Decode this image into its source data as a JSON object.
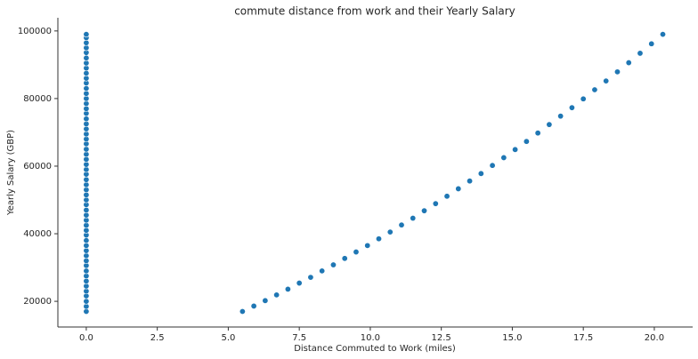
{
  "chart_data": {
    "type": "scatter",
    "title": "commute distance from work and their Yearly Salary",
    "x_label": "Distance Commuted to Work (miles)",
    "y_label": "Yearly Salary (GBP)",
    "color": "#1f77b4",
    "x": [
      0,
      0,
      0,
      0,
      0,
      0,
      0,
      0,
      0,
      0,
      0,
      0,
      0,
      0,
      0,
      0,
      0,
      0,
      0,
      0,
      0,
      0,
      0,
      0,
      0,
      0,
      0,
      0,
      0,
      0,
      0,
      0,
      0,
      0,
      0,
      0,
      0,
      0,
      0,
      0,
      0,
      0,
      0,
      0,
      0,
      0,
      0,
      0,
      0,
      0,
      0,
      0,
      0,
      0,
      0,
      0,
      5.5,
      5.9,
      6.3,
      6.7,
      7.1,
      7.5,
      7.9,
      8.3,
      8.7,
      9.1,
      9.5,
      9.9,
      10.3,
      10.7,
      11.1,
      11.5,
      11.9,
      12.3,
      12.7,
      13.1,
      13.5,
      13.9,
      14.3,
      14.7,
      15.1,
      15.5,
      15.9,
      16.3,
      16.7,
      17.1,
      17.5,
      17.9,
      18.3,
      18.7,
      19.1,
      19.5,
      19.9,
      20.3
    ],
    "values": [
      17000,
      18500,
      20000,
      21600,
      23000,
      24500,
      26000,
      27500,
      29000,
      30600,
      32000,
      33500,
      35000,
      36500,
      38000,
      39600,
      41000,
      42500,
      44000,
      45500,
      47000,
      48600,
      50000,
      51500,
      53000,
      54500,
      56000,
      57600,
      59000,
      60500,
      62000,
      63500,
      65000,
      66600,
      68000,
      69500,
      71000,
      72500,
      74000,
      75600,
      77000,
      78500,
      80000,
      81500,
      83000,
      84600,
      86000,
      87500,
      89000,
      90500,
      92000,
      93600,
      95000,
      96500,
      98000,
      99000,
      17000,
      18600,
      20200,
      21900,
      23600,
      25400,
      27100,
      29000,
      30800,
      32700,
      34600,
      36500,
      38500,
      40500,
      42600,
      44600,
      46800,
      48900,
      51100,
      53300,
      55600,
      57800,
      60200,
      62500,
      64900,
      67300,
      69800,
      72300,
      74800,
      77300,
      79900,
      82600,
      85200,
      87900,
      90600,
      93400,
      96200,
      99000
    ],
    "xlim": [
      -1.0,
      21.35
    ],
    "ylim": [
      12400,
      103900
    ],
    "xticks": [
      {
        "value": 0,
        "label": "0.0"
      },
      {
        "value": 2.5,
        "label": "2.5"
      },
      {
        "value": 5,
        "label": "5.0"
      },
      {
        "value": 7.5,
        "label": "7.5"
      },
      {
        "value": 10,
        "label": "10.0"
      },
      {
        "value": 12.5,
        "label": "12.5"
      },
      {
        "value": 15,
        "label": "15.0"
      },
      {
        "value": 17.5,
        "label": "17.5"
      },
      {
        "value": 20,
        "label": "20.0"
      }
    ],
    "yticks": [
      20000,
      40000,
      60000,
      80000,
      100000
    ]
  }
}
